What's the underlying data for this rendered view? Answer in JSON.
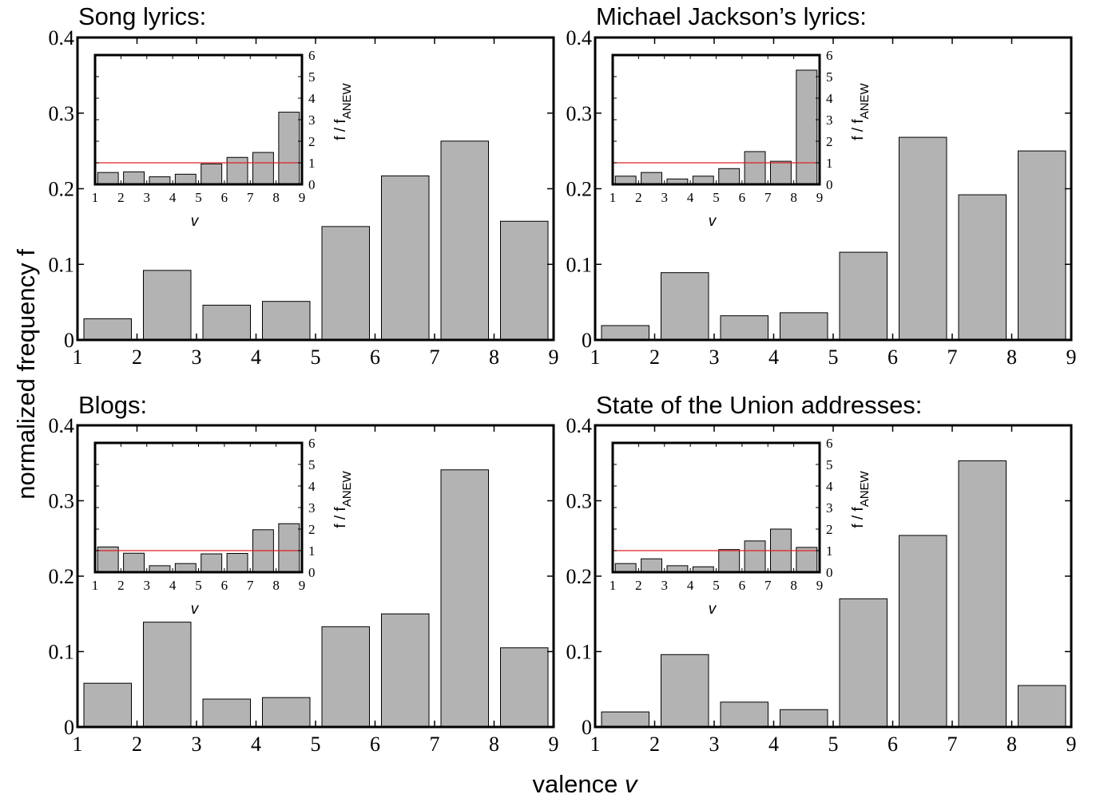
{
  "figure": {
    "ylabel": "normalized frequency f",
    "xlabel_prefix": "valence ",
    "xlabel_var": "v"
  },
  "colors": {
    "bar_fill": "#b3b3b3",
    "bar_stroke": "#000000",
    "reference_line": "#e02020",
    "axes": "#000000"
  },
  "chart_data": [
    {
      "type": "bar",
      "title": "Song lyrics:",
      "x_tick_labels": [
        "1",
        "2",
        "3",
        "4",
        "5",
        "6",
        "7",
        "8",
        "9"
      ],
      "xlim": [
        1,
        9
      ],
      "ylim": [
        0,
        0.4
      ],
      "y_tick_labels": [
        "0",
        "0.1",
        "0.2",
        "0.3",
        "0.4"
      ],
      "bins": [
        [
          1,
          2
        ],
        [
          2,
          3
        ],
        [
          3,
          4
        ],
        [
          4,
          5
        ],
        [
          5,
          6
        ],
        [
          6,
          7
        ],
        [
          7,
          8
        ],
        [
          8,
          9
        ]
      ],
      "values": [
        0.028,
        0.092,
        0.046,
        0.051,
        0.15,
        0.217,
        0.263,
        0.157
      ],
      "inset": {
        "type": "bar",
        "xlabel": "v",
        "ylabel_main": "f / f",
        "ylabel_sub": "ANEW",
        "xlim": [
          1,
          9
        ],
        "ylim": [
          0,
          6
        ],
        "x_tick_labels": [
          "1",
          "2",
          "3",
          "4",
          "5",
          "6",
          "7",
          "8",
          "9"
        ],
        "y_tick_labels": [
          "0",
          "1",
          "2",
          "3",
          "4",
          "5",
          "6"
        ],
        "bar_centers": [
          1.5,
          2.5,
          3.5,
          4.5,
          5.5,
          6.5,
          7.5,
          8.5
        ],
        "values": [
          0.55,
          0.58,
          0.35,
          0.47,
          0.95,
          1.25,
          1.48,
          3.35
        ],
        "reference_value": 1
      }
    },
    {
      "type": "bar",
      "title": "Michael Jackson’s lyrics:",
      "x_tick_labels": [
        "1",
        "2",
        "3",
        "4",
        "5",
        "6",
        "7",
        "8",
        "9"
      ],
      "xlim": [
        1,
        9
      ],
      "ylim": [
        0,
        0.4
      ],
      "y_tick_labels": [
        "0",
        "0.1",
        "0.2",
        "0.3",
        "0.4"
      ],
      "bins": [
        [
          1,
          2
        ],
        [
          2,
          3
        ],
        [
          3,
          4
        ],
        [
          4,
          5
        ],
        [
          5,
          6
        ],
        [
          6,
          7
        ],
        [
          7,
          8
        ],
        [
          8,
          9
        ]
      ],
      "values": [
        0.019,
        0.089,
        0.032,
        0.036,
        0.116,
        0.268,
        0.192,
        0.25
      ],
      "inset": {
        "type": "bar",
        "xlabel": "v",
        "ylabel_main": "f / f",
        "ylabel_sub": "ANEW",
        "xlim": [
          1,
          9
        ],
        "ylim": [
          0,
          6
        ],
        "x_tick_labels": [
          "1",
          "2",
          "3",
          "4",
          "5",
          "6",
          "7",
          "8",
          "9"
        ],
        "y_tick_labels": [
          "0",
          "1",
          "2",
          "3",
          "4",
          "5",
          "6"
        ],
        "bar_centers": [
          1.5,
          2.5,
          3.5,
          4.5,
          5.5,
          6.5,
          7.5,
          8.5
        ],
        "values": [
          0.38,
          0.55,
          0.25,
          0.38,
          0.73,
          1.52,
          1.07,
          5.3
        ],
        "reference_value": 1
      }
    },
    {
      "type": "bar",
      "title": "Blogs:",
      "x_tick_labels": [
        "1",
        "2",
        "3",
        "4",
        "5",
        "6",
        "7",
        "8",
        "9"
      ],
      "xlim": [
        1,
        9
      ],
      "ylim": [
        0,
        0.4
      ],
      "y_tick_labels": [
        "0",
        "0.1",
        "0.2",
        "0.3",
        "0.4"
      ],
      "bins": [
        [
          1,
          2
        ],
        [
          2,
          3
        ],
        [
          3,
          4
        ],
        [
          4,
          5
        ],
        [
          5,
          6
        ],
        [
          6,
          7
        ],
        [
          7,
          8
        ],
        [
          8,
          9
        ]
      ],
      "values": [
        0.058,
        0.139,
        0.037,
        0.039,
        0.133,
        0.15,
        0.341,
        0.105
      ],
      "inset": {
        "type": "bar",
        "xlabel": "v",
        "ylabel_main": "f / f",
        "ylabel_sub": "ANEW",
        "xlim": [
          1,
          9
        ],
        "ylim": [
          0,
          6
        ],
        "x_tick_labels": [
          "1",
          "2",
          "3",
          "4",
          "5",
          "6",
          "7",
          "8",
          "9"
        ],
        "y_tick_labels": [
          "0",
          "1",
          "2",
          "3",
          "4",
          "5",
          "6"
        ],
        "bar_centers": [
          1.5,
          2.5,
          3.5,
          4.5,
          5.5,
          6.5,
          7.5,
          8.5
        ],
        "values": [
          1.17,
          0.88,
          0.3,
          0.4,
          0.85,
          0.87,
          1.97,
          2.25
        ],
        "reference_value": 1
      }
    },
    {
      "type": "bar",
      "title": "State of the Union addresses:",
      "x_tick_labels": [
        "1",
        "2",
        "3",
        "4",
        "5",
        "6",
        "7",
        "8",
        "9"
      ],
      "xlim": [
        1,
        9
      ],
      "ylim": [
        0,
        0.4
      ],
      "y_tick_labels": [
        "0",
        "0.1",
        "0.2",
        "0.3",
        "0.4"
      ],
      "bins": [
        [
          1,
          2
        ],
        [
          2,
          3
        ],
        [
          3,
          4
        ],
        [
          4,
          5
        ],
        [
          5,
          6
        ],
        [
          6,
          7
        ],
        [
          7,
          8
        ],
        [
          8,
          9
        ]
      ],
      "values": [
        0.02,
        0.096,
        0.033,
        0.023,
        0.17,
        0.254,
        0.353,
        0.055
      ],
      "inset": {
        "type": "bar",
        "xlabel": "v",
        "ylabel_main": "f / f",
        "ylabel_sub": "ANEW",
        "xlim": [
          1,
          9
        ],
        "ylim": [
          0,
          6
        ],
        "x_tick_labels": [
          "1",
          "2",
          "3",
          "4",
          "5",
          "6",
          "7",
          "8",
          "9"
        ],
        "y_tick_labels": [
          "0",
          "1",
          "2",
          "3",
          "4",
          "5",
          "6"
        ],
        "bar_centers": [
          1.5,
          2.5,
          3.5,
          4.5,
          5.5,
          6.5,
          7.5,
          8.5
        ],
        "values": [
          0.4,
          0.62,
          0.3,
          0.25,
          1.05,
          1.45,
          2.0,
          1.15
        ],
        "reference_value": 1
      }
    }
  ]
}
